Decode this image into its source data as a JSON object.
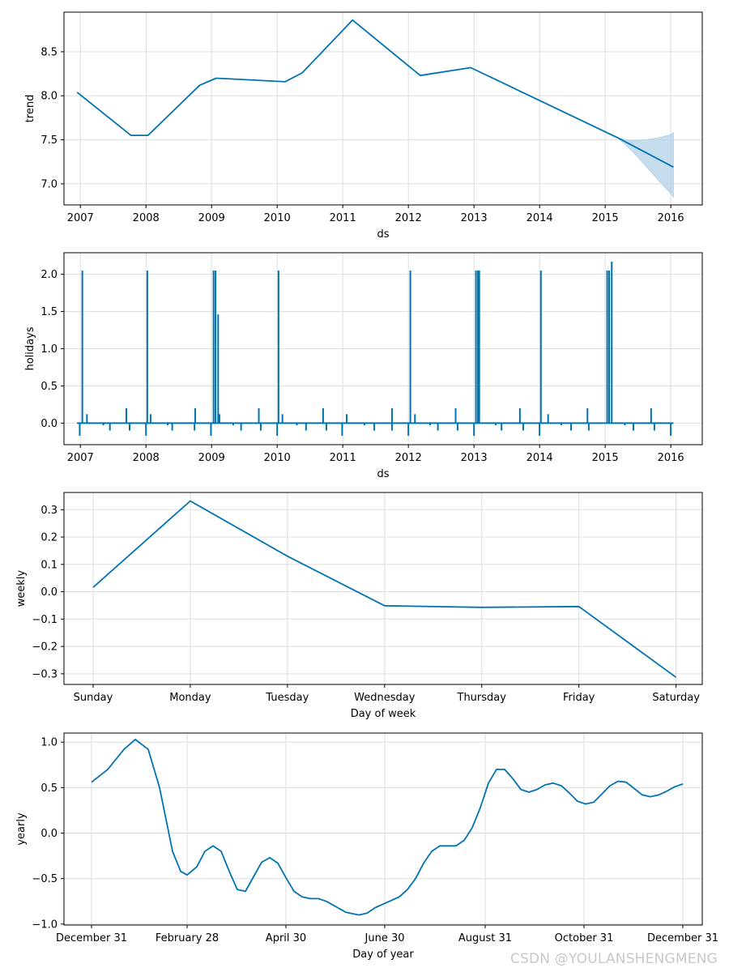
{
  "colors": {
    "line": "#0072B2",
    "band": "#b8d4ea",
    "grid": "#dddddd",
    "axis": "#000000"
  },
  "watermark": "CSDN @YOULANSHENGMENG",
  "chart_data": [
    {
      "id": "trend",
      "type": "line",
      "xlabel": "ds",
      "ylabel": "trend",
      "xlim": [
        2006.75,
        2016.48
      ],
      "ylim": [
        6.76,
        8.95
      ],
      "xticks": [
        2007,
        2008,
        2009,
        2010,
        2011,
        2012,
        2013,
        2014,
        2015,
        2016
      ],
      "xtick_labels": [
        "2007",
        "2008",
        "2009",
        "2010",
        "2011",
        "2012",
        "2013",
        "2014",
        "2015",
        "2016"
      ],
      "yticks": [
        7.0,
        7.5,
        8.0,
        8.5
      ],
      "ytick_labels": [
        "7.0",
        "7.5",
        "8.0",
        "8.5"
      ],
      "series": [
        {
          "name": "trend",
          "x": [
            2006.95,
            2007.77,
            2008.03,
            2008.82,
            2009.07,
            2010.12,
            2010.38,
            2011.15,
            2012.18,
            2012.95,
            2015.2,
            2016.04
          ],
          "y": [
            8.04,
            7.55,
            7.55,
            8.12,
            8.2,
            8.16,
            8.26,
            8.86,
            8.23,
            8.32,
            7.52,
            7.19
          ]
        }
      ],
      "band": {
        "x": [
          2015.2,
          2015.4,
          2015.6,
          2015.8,
          2016.0,
          2016.04
        ],
        "upper": [
          7.52,
          7.49,
          7.5,
          7.52,
          7.56,
          7.58
        ],
        "lower": [
          7.52,
          7.38,
          7.22,
          7.05,
          6.89,
          6.85
        ]
      }
    },
    {
      "id": "holidays",
      "type": "line",
      "xlabel": "ds",
      "ylabel": "holidays",
      "xlim": [
        2006.75,
        2016.48
      ],
      "ylim": [
        -0.29,
        2.29
      ],
      "xticks": [
        2007,
        2008,
        2009,
        2010,
        2011,
        2012,
        2013,
        2014,
        2015,
        2016
      ],
      "xtick_labels": [
        "2007",
        "2008",
        "2009",
        "2010",
        "2011",
        "2012",
        "2013",
        "2014",
        "2015",
        "2016"
      ],
      "yticks": [
        0.0,
        0.5,
        1.0,
        1.5,
        2.0
      ],
      "ytick_labels": [
        "0.0",
        "0.5",
        "1.0",
        "1.5",
        "2.0"
      ],
      "baseline": {
        "x_start": 2006.95,
        "x_end": 2016.04
      },
      "spikes": [
        [
          2006.99,
          -0.17
        ],
        [
          2007.03,
          2.05
        ],
        [
          2007.1,
          0.12
        ],
        [
          2007.35,
          -0.03
        ],
        [
          2007.45,
          -0.1
        ],
        [
          2007.7,
          0.2
        ],
        [
          2007.75,
          -0.1
        ],
        [
          2008.0,
          -0.17
        ],
        [
          2008.02,
          2.05
        ],
        [
          2008.07,
          0.12
        ],
        [
          2008.33,
          -0.03
        ],
        [
          2008.4,
          -0.1
        ],
        [
          2008.75,
          0.2
        ],
        [
          2008.74,
          -0.1
        ],
        [
          2008.99,
          -0.17
        ],
        [
          2009.03,
          2.05
        ],
        [
          2009.06,
          2.05
        ],
        [
          2009.1,
          1.46
        ],
        [
          2009.12,
          0.12
        ],
        [
          2009.33,
          -0.03
        ],
        [
          2009.45,
          -0.1
        ],
        [
          2009.72,
          0.2
        ],
        [
          2009.75,
          -0.1
        ],
        [
          2010.0,
          -0.17
        ],
        [
          2010.02,
          2.05
        ],
        [
          2010.08,
          0.12
        ],
        [
          2010.3,
          -0.03
        ],
        [
          2010.44,
          -0.1
        ],
        [
          2010.7,
          0.2
        ],
        [
          2010.75,
          -0.1
        ],
        [
          2010.99,
          -0.17
        ],
        [
          2011.06,
          0.12
        ],
        [
          2011.33,
          -0.03
        ],
        [
          2011.48,
          -0.1
        ],
        [
          2011.75,
          0.2
        ],
        [
          2011.75,
          -0.1
        ],
        [
          2012.0,
          -0.17
        ],
        [
          2012.03,
          2.05
        ],
        [
          2012.1,
          0.12
        ],
        [
          2012.33,
          -0.03
        ],
        [
          2012.45,
          -0.1
        ],
        [
          2012.72,
          0.2
        ],
        [
          2012.75,
          -0.1
        ],
        [
          2013.0,
          -0.17
        ],
        [
          2013.03,
          2.05
        ],
        [
          2013.06,
          2.05
        ],
        [
          2013.08,
          2.05
        ],
        [
          2013.33,
          -0.03
        ],
        [
          2013.42,
          -0.1
        ],
        [
          2013.7,
          0.2
        ],
        [
          2013.75,
          -0.1
        ],
        [
          2014.0,
          -0.17
        ],
        [
          2014.02,
          2.05
        ],
        [
          2014.13,
          0.12
        ],
        [
          2014.33,
          -0.03
        ],
        [
          2014.48,
          -0.1
        ],
        [
          2014.73,
          0.2
        ],
        [
          2014.75,
          -0.1
        ],
        [
          2015.03,
          2.05
        ],
        [
          2015.06,
          2.05
        ],
        [
          2015.1,
          2.17
        ],
        [
          2015.3,
          -0.03
        ],
        [
          2015.43,
          -0.1
        ],
        [
          2015.7,
          0.2
        ],
        [
          2015.75,
          -0.1
        ],
        [
          2016.0,
          -0.17
        ]
      ]
    },
    {
      "id": "weekly",
      "type": "line",
      "xlabel": "Day of week",
      "ylabel": "weekly",
      "xlim": [
        -0.3,
        6.27
      ],
      "ylim": [
        -0.339,
        0.363
      ],
      "xticks": [
        0,
        1,
        2,
        3,
        4,
        5,
        6
      ],
      "xtick_labels": [
        "Sunday",
        "Monday",
        "Tuesday",
        "Wednesday",
        "Thursday",
        "Friday",
        "Saturday"
      ],
      "yticks": [
        -0.3,
        -0.2,
        -0.1,
        0.0,
        0.1,
        0.2,
        0.3
      ],
      "ytick_labels": [
        "−0.3",
        "−0.2",
        "−0.1",
        "0.0",
        "0.1",
        "0.2",
        "0.3"
      ],
      "series": [
        {
          "name": "weekly",
          "x": [
            0,
            1,
            2,
            3,
            4,
            5,
            6
          ],
          "y": [
            0.016,
            0.332,
            0.13,
            -0.051,
            -0.057,
            -0.054,
            -0.313
          ]
        }
      ]
    },
    {
      "id": "yearly",
      "type": "line",
      "xlabel": "Day of year",
      "ylabel": "yearly",
      "xlim": [
        -17,
        377
      ],
      "ylim": [
        -1.01,
        1.1
      ],
      "xticks": [
        0,
        59,
        120,
        181,
        243,
        304,
        365
      ],
      "xtick_labels": [
        "December 31",
        "February 28",
        "April 30",
        "June 30",
        "August 31",
        "October 31",
        "December 31"
      ],
      "yticks": [
        -1.0,
        -0.5,
        0.0,
        0.5,
        1.0
      ],
      "ytick_labels": [
        "−1.0",
        "−0.5",
        "0.0",
        "0.5",
        "1.0"
      ],
      "series": [
        {
          "name": "yearly",
          "x": [
            0,
            10,
            20,
            27,
            35,
            42,
            50,
            55,
            59,
            65,
            70,
            75,
            80,
            85,
            90,
            95,
            100,
            105,
            110,
            115,
            120,
            125,
            130,
            135,
            140,
            145,
            150,
            157,
            165,
            170,
            175,
            180,
            185,
            190,
            195,
            200,
            205,
            210,
            215,
            220,
            225,
            230,
            235,
            240,
            245,
            250,
            255,
            260,
            265,
            270,
            275,
            280,
            285,
            290,
            295,
            300,
            305,
            310,
            315,
            320,
            325,
            330,
            335,
            340,
            345,
            350,
            355,
            360,
            365
          ],
          "y": [
            0.56,
            0.7,
            0.92,
            1.03,
            0.92,
            0.5,
            -0.2,
            -0.42,
            -0.46,
            -0.37,
            -0.2,
            -0.14,
            -0.2,
            -0.42,
            -0.62,
            -0.64,
            -0.48,
            -0.32,
            -0.27,
            -0.33,
            -0.49,
            -0.64,
            -0.7,
            -0.72,
            -0.72,
            -0.75,
            -0.8,
            -0.87,
            -0.9,
            -0.88,
            -0.82,
            -0.78,
            -0.74,
            -0.7,
            -0.62,
            -0.5,
            -0.33,
            -0.2,
            -0.14,
            -0.14,
            -0.14,
            -0.08,
            0.06,
            0.28,
            0.55,
            0.7,
            0.7,
            0.6,
            0.48,
            0.45,
            0.48,
            0.53,
            0.55,
            0.52,
            0.44,
            0.35,
            0.32,
            0.34,
            0.43,
            0.52,
            0.57,
            0.56,
            0.49,
            0.42,
            0.4,
            0.42,
            0.46,
            0.51,
            0.54
          ]
        }
      ]
    }
  ]
}
